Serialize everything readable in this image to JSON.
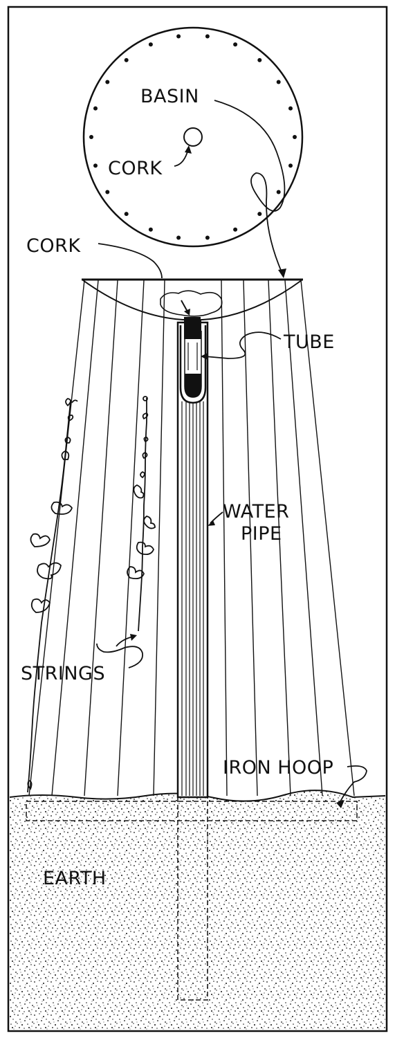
{
  "labels": {
    "basin": "BASIN",
    "cork_top": "CORK",
    "cork_side": "CORK",
    "tube": "TUBE",
    "water_pipe_line1": "WATER",
    "water_pipe_line2": "PIPE",
    "strings": "STRINGS",
    "iron_hoop": "IRON HOOP",
    "earth": "EARTH"
  },
  "colors": {
    "ink": "#111111",
    "paper": "#ffffff"
  }
}
